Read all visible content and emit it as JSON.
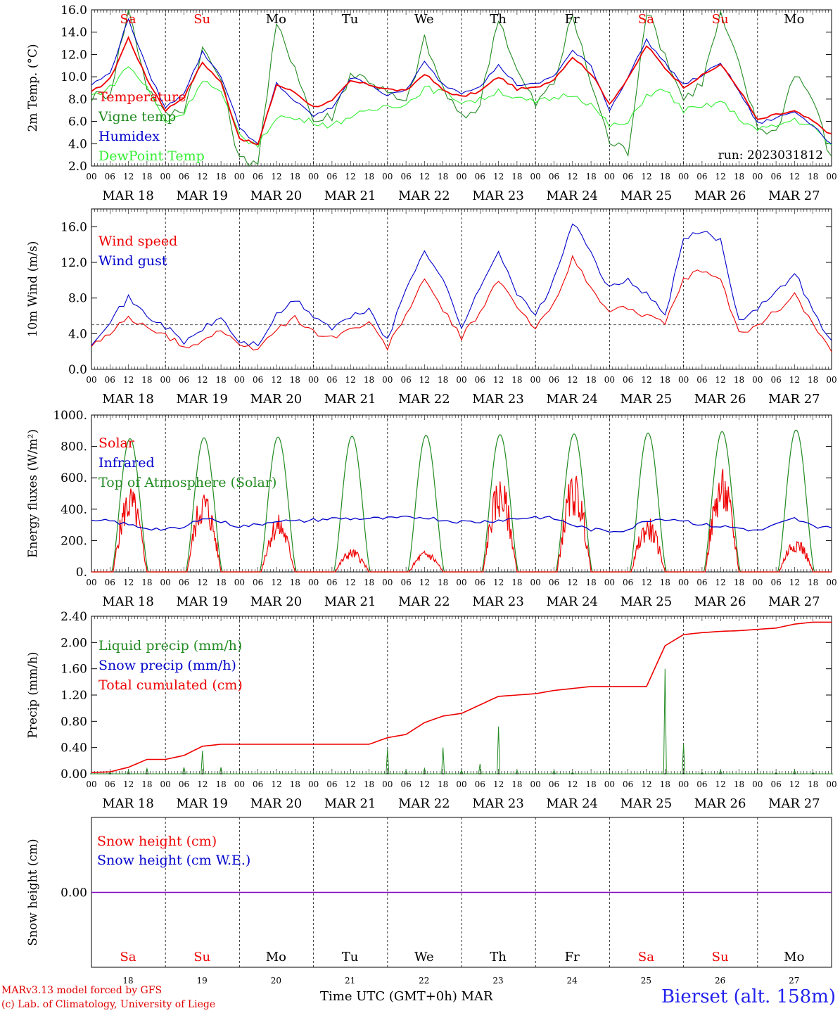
{
  "chart_data": [
    {
      "type": "line",
      "ylabel": "2m Temp. (°C)",
      "ylim": [
        2.0,
        16.0
      ],
      "yticks": [
        "2.0",
        "4.0",
        "6.0",
        "8.0",
        "10.0",
        "12.0",
        "14.0",
        "16.0"
      ],
      "annotation": "run: 2023031812",
      "day_names": [
        "Sa",
        "Su",
        "Mo",
        "Tu",
        "We",
        "Th",
        "Fr",
        "Sa",
        "Su",
        "Mo"
      ],
      "hour_ticks": [
        "00",
        "06",
        "12",
        "18"
      ],
      "date_labels": [
        "MAR 18",
        "MAR 19",
        "MAR 20",
        "MAR 21",
        "MAR 22",
        "MAR 23",
        "MAR 24",
        "MAR 25",
        "MAR 26",
        "MAR 27"
      ],
      "x_hours": [
        0,
        6,
        12,
        18,
        24,
        30,
        36,
        42,
        48,
        54,
        60,
        66,
        72,
        78,
        84,
        90,
        96,
        102,
        108,
        114,
        120,
        126,
        132,
        138,
        144,
        150,
        156,
        162,
        168,
        174,
        180,
        186,
        192,
        198,
        204,
        210,
        216,
        222,
        228,
        234,
        240
      ],
      "series": [
        {
          "name": "Temperature",
          "color": "#ee0000",
          "values": [
            8.6,
            9.8,
            13.5,
            9.8,
            7.0,
            8.2,
            11.3,
            9.5,
            4.5,
            3.9,
            9.3,
            8.6,
            7.3,
            7.8,
            9.6,
            9.3,
            8.9,
            8.7,
            10.3,
            8.8,
            8.2,
            8.7,
            10.0,
            8.9,
            9.0,
            9.8,
            11.8,
            10.3,
            7.6,
            9.8,
            12.8,
            10.8,
            9.1,
            10.1,
            11.1,
            8.9,
            6.1,
            6.6,
            6.9,
            6.0,
            4.8
          ]
        },
        {
          "name": "Vigne temp",
          "color": "#228b22",
          "values": [
            8.2,
            8.6,
            16.0,
            9.2,
            6.5,
            7.2,
            12.5,
            9.8,
            2.5,
            2.5,
            14.6,
            11.0,
            6.0,
            6.5,
            10.3,
            9.8,
            8.5,
            7.5,
            13.3,
            9.0,
            6.2,
            7.5,
            15.5,
            10.5,
            7.5,
            9.5,
            15.5,
            9.5,
            4.2,
            3.3,
            16.0,
            12.0,
            8.0,
            9.5,
            15.5,
            11.0,
            5.5,
            5.0,
            10.5,
            8.0,
            2.5
          ]
        },
        {
          "name": "Humidex",
          "color": "#0000cc",
          "values": [
            9.3,
            10.3,
            15.2,
            10.7,
            7.2,
            8.6,
            12.2,
            10.1,
            5.5,
            3.9,
            9.4,
            7.8,
            6.5,
            7.2,
            9.9,
            9.4,
            8.3,
            8.8,
            11.3,
            9.3,
            8.6,
            9.2,
            11.0,
            9.3,
            9.3,
            10.1,
            12.3,
            11.0,
            7.0,
            10.0,
            13.3,
            11.2,
            9.3,
            10.1,
            11.3,
            8.7,
            5.8,
            6.3,
            6.9,
            5.7,
            3.9
          ]
        },
        {
          "name": "DewPoint Temp",
          "color": "#33ee33",
          "values": [
            8.3,
            9.0,
            11.0,
            9.0,
            6.0,
            6.8,
            9.8,
            8.5,
            4.8,
            3.8,
            6.5,
            6.2,
            6.0,
            5.6,
            6.5,
            6.8,
            7.5,
            7.5,
            9.0,
            8.6,
            7.8,
            7.9,
            8.8,
            8.0,
            7.7,
            8.1,
            8.5,
            7.5,
            5.6,
            5.8,
            8.4,
            8.8,
            7.0,
            7.2,
            7.8,
            6.3,
            5.2,
            5.6,
            6.2,
            5.5,
            3.8
          ]
        }
      ]
    },
    {
      "type": "line",
      "ylabel": "10m Wind (m/s)",
      "ylim": [
        0.0,
        18.0
      ],
      "yticks": [
        "0.0",
        "4.0",
        "8.0",
        "12.0",
        "16.0"
      ],
      "reference_line": 5.0,
      "x_hours": [
        0,
        6,
        12,
        18,
        24,
        30,
        36,
        42,
        48,
        54,
        60,
        66,
        72,
        78,
        84,
        90,
        96,
        102,
        108,
        114,
        120,
        126,
        132,
        138,
        144,
        150,
        156,
        162,
        168,
        174,
        180,
        186,
        192,
        198,
        204,
        210,
        216,
        222,
        228,
        234,
        240
      ],
      "series": [
        {
          "name": "Wind speed",
          "color": "#ee0000",
          "values": [
            2.5,
            4.0,
            6.0,
            4.5,
            3.8,
            2.5,
            3.2,
            4.5,
            2.5,
            2.4,
            4.5,
            5.7,
            4.2,
            3.6,
            4.5,
            5.2,
            2.5,
            6.2,
            10.0,
            6.8,
            3.5,
            6.5,
            10.0,
            7.0,
            4.5,
            7.5,
            12.5,
            9.0,
            6.5,
            7.0,
            6.0,
            5.0,
            10.0,
            11.2,
            10.0,
            4.0,
            5.0,
            6.5,
            8.5,
            5.0,
            2.0
          ]
        },
        {
          "name": "Wind gust",
          "color": "#0000cc",
          "values": [
            3.0,
            5.5,
            8.0,
            6.0,
            4.8,
            3.0,
            4.5,
            5.8,
            3.0,
            2.8,
            6.0,
            7.8,
            6.0,
            4.6,
            5.8,
            6.8,
            3.2,
            9.0,
            13.5,
            10.0,
            4.8,
            9.0,
            13.5,
            8.5,
            6.0,
            10.0,
            16.5,
            13.0,
            9.0,
            10.0,
            8.5,
            6.0,
            14.5,
            15.5,
            14.5,
            5.5,
            7.0,
            8.5,
            11.0,
            6.5,
            3.0
          ]
        }
      ]
    },
    {
      "type": "line",
      "ylabel": "Energy fluxes (W/m²)",
      "ylim": [
        0,
        1000
      ],
      "yticks": [
        "0.",
        "200.",
        "400.",
        "600.",
        "800.",
        "1000."
      ],
      "day_peaks": {
        "Top of Atmosphere (Solar)": [
          850,
          855,
          860,
          865,
          870,
          875,
          880,
          885,
          895,
          905
        ],
        "Solar": [
          560,
          540,
          370,
          150,
          140,
          610,
          640,
          350,
          660,
          230
        ]
      },
      "series": [
        {
          "name": "Solar",
          "color": "#ee0000",
          "values": [
            0,
            0,
            560,
            0,
            0,
            0,
            540,
            0,
            0,
            0,
            370,
            0,
            0,
            0,
            150,
            0,
            0,
            0,
            140,
            0,
            0,
            0,
            610,
            0,
            0,
            0,
            640,
            0,
            0,
            0,
            350,
            0,
            0,
            0,
            660,
            0,
            0,
            0,
            230,
            0
          ]
        },
        {
          "name": "Infrared",
          "color": "#0000cc",
          "values": [
            320,
            325,
            300,
            280,
            270,
            280,
            350,
            320,
            290,
            300,
            330,
            320,
            330,
            340,
            340,
            340,
            340,
            345,
            350,
            330,
            320,
            320,
            330,
            340,
            350,
            340,
            300,
            270,
            260,
            270,
            330,
            340,
            330,
            300,
            290,
            280,
            260,
            300,
            340,
            290
          ]
        },
        {
          "name": "Top of Atmosphere (Solar)",
          "color": "#228b22",
          "values": [
            850,
            855,
            860,
            865,
            870,
            875,
            880,
            885,
            895,
            905
          ]
        }
      ]
    },
    {
      "type": "line",
      "ylabel": "Precip (mm/h)",
      "ylim": [
        0.0,
        2.4
      ],
      "yticks": [
        "0.00",
        "0.40",
        "0.80",
        "1.20",
        "1.60",
        "2.00",
        "2.40"
      ],
      "x_hours": [
        0,
        6,
        12,
        18,
        24,
        30,
        36,
        42,
        48,
        54,
        60,
        66,
        72,
        78,
        84,
        90,
        96,
        102,
        108,
        114,
        120,
        126,
        132,
        138,
        144,
        150,
        156,
        162,
        168,
        174,
        180,
        186,
        192,
        198,
        204,
        210,
        216,
        222,
        228,
        234,
        240
      ],
      "series": [
        {
          "name": "Liquid precip (mm/h)",
          "color": "#228b22",
          "values": [
            0,
            0.02,
            0.05,
            0.08,
            0,
            0.1,
            0.35,
            0.1,
            0,
            0,
            0,
            0,
            0,
            0,
            0,
            0,
            0.38,
            0.05,
            0.08,
            0.4,
            0.05,
            0.15,
            0.72,
            0.05,
            0,
            0.05,
            0.02,
            0,
            0,
            0,
            0,
            1.6,
            0.45,
            0.02,
            0.05,
            0,
            0,
            0.02,
            0.05,
            0.02,
            0
          ]
        },
        {
          "name": "Snow precip (mm/h)",
          "color": "#0000cc",
          "values": [
            0,
            0,
            0,
            0,
            0,
            0,
            0,
            0,
            0,
            0,
            0,
            0,
            0,
            0,
            0,
            0,
            0,
            0,
            0,
            0,
            0,
            0,
            0,
            0,
            0,
            0,
            0,
            0,
            0,
            0,
            0,
            0,
            0,
            0,
            0,
            0,
            0,
            0,
            0,
            0,
            0
          ]
        },
        {
          "name": "Total cumulated (cm)",
          "color": "#ee0000",
          "values": [
            0.02,
            0.03,
            0.1,
            0.22,
            0.22,
            0.28,
            0.42,
            0.45,
            0.45,
            0.45,
            0.45,
            0.45,
            0.45,
            0.45,
            0.45,
            0.45,
            0.55,
            0.6,
            0.78,
            0.88,
            0.92,
            1.05,
            1.18,
            1.2,
            1.22,
            1.27,
            1.3,
            1.33,
            1.33,
            1.33,
            1.33,
            1.95,
            2.12,
            2.15,
            2.17,
            2.18,
            2.2,
            2.22,
            2.28,
            2.31,
            2.31
          ]
        }
      ]
    },
    {
      "type": "line",
      "ylabel": "Snow height (cm)",
      "ylim": [
        -1,
        1
      ],
      "yticks": [
        "0.00"
      ],
      "day_names": [
        "Sa",
        "Su",
        "Mo",
        "Tu",
        "We",
        "Th",
        "Fr",
        "Sa",
        "Su",
        "Mo"
      ],
      "day_numbers": [
        "18",
        "19",
        "20",
        "21",
        "22",
        "23",
        "24",
        "25",
        "26",
        "27"
      ],
      "xlabel": "Time UTC (GMT+0h)",
      "x_month": "MAR",
      "series": [
        {
          "name": "Snow height (cm)",
          "color": "#ee0000",
          "values": [
            0,
            0,
            0,
            0,
            0,
            0,
            0,
            0,
            0,
            0,
            0
          ]
        },
        {
          "name": "Snow height (cm W.E.)",
          "color": "#0000cc",
          "values": [
            0,
            0,
            0,
            0,
            0,
            0,
            0,
            0,
            0,
            0,
            0
          ]
        }
      ]
    }
  ],
  "weekend_color": "#ee0000",
  "credits": {
    "line1": "MARv3.13 model forced by GFS",
    "line2": "(c) Lab. of Climatology, University of Liege"
  },
  "station": "Bierset (alt. 158m)"
}
